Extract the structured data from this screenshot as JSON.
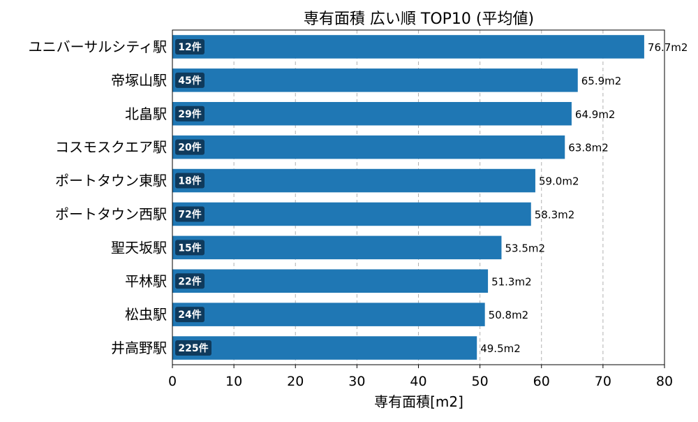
{
  "chart_data": {
    "type": "bar",
    "orientation": "horizontal",
    "title": "専有面積 広い順 TOP10 (平均値)",
    "xlabel": "専有面積[m2]",
    "ylabel": "",
    "xlim": [
      0,
      80
    ],
    "x_ticks": [
      0,
      10,
      20,
      30,
      40,
      50,
      60,
      70,
      80
    ],
    "grid": "x-dashed",
    "bar_color": "#1f77b4",
    "badge_color": "#0f3a5c",
    "categories": [
      "ユニバーサルシティ駅",
      "帝塚山駅",
      "北畠駅",
      "コスモスクエア駅",
      "ポートタウン東駅",
      "ポートタウン西駅",
      "聖天坂駅",
      "平林駅",
      "松虫駅",
      "井高野駅"
    ],
    "values": [
      76.7,
      65.9,
      64.9,
      63.8,
      59.0,
      58.3,
      53.5,
      51.3,
      50.8,
      49.5
    ],
    "value_labels": [
      "76.7m2",
      "65.9m2",
      "64.9m2",
      "63.8m2",
      "59.0m2",
      "58.3m2",
      "53.5m2",
      "51.3m2",
      "50.8m2",
      "49.5m2"
    ],
    "counts": [
      "12件",
      "45件",
      "29件",
      "20件",
      "18件",
      "72件",
      "15件",
      "22件",
      "24件",
      "225件"
    ]
  }
}
